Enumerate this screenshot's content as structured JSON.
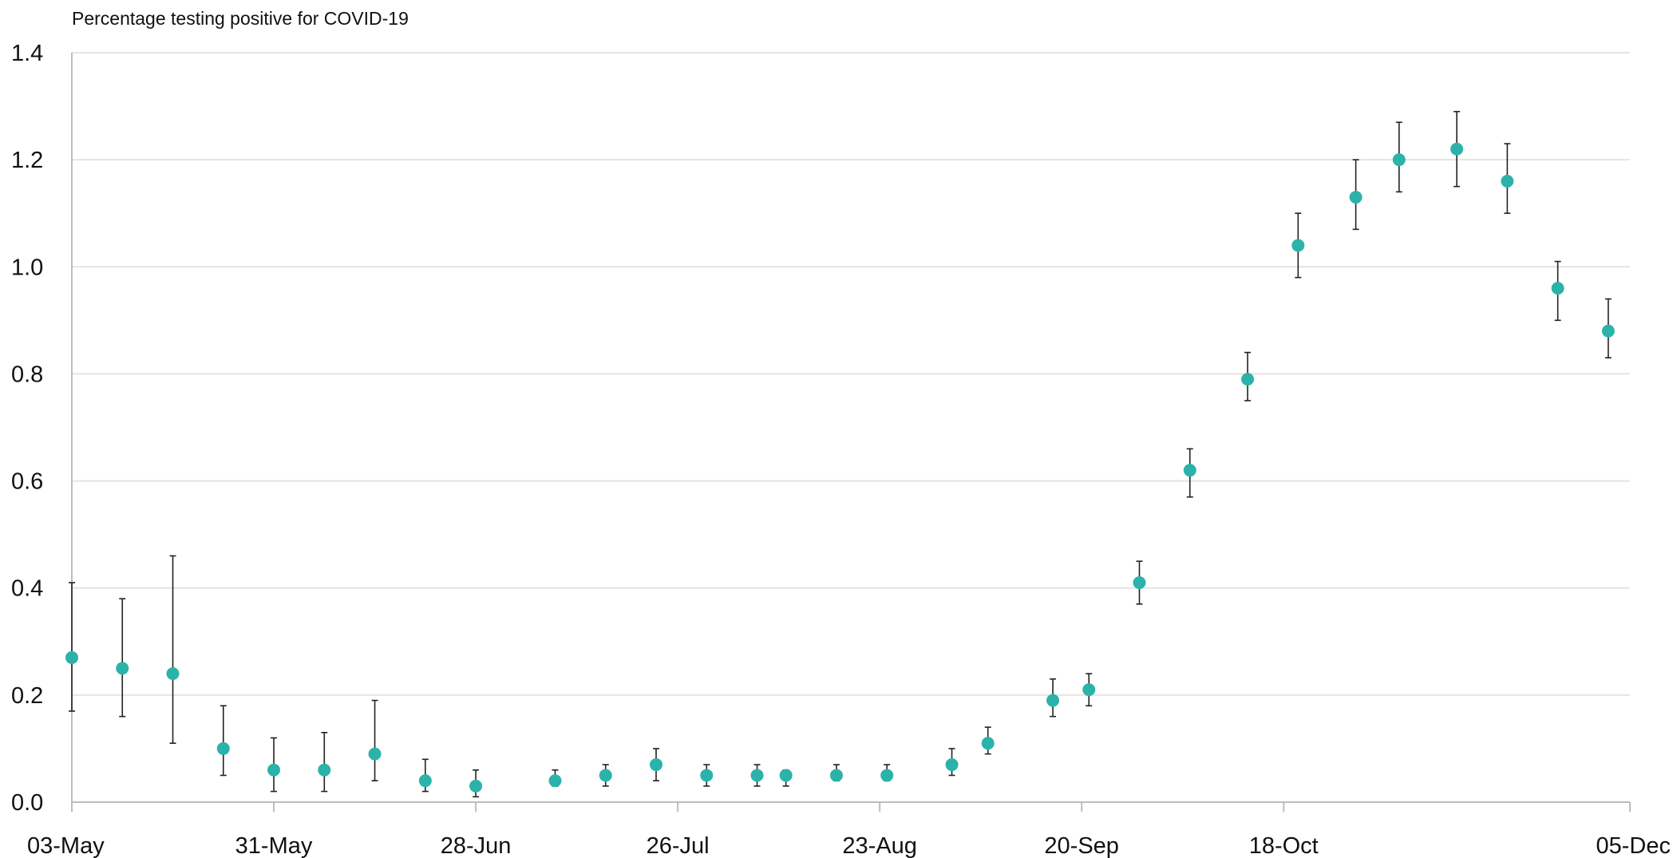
{
  "chart_data": {
    "type": "scatter",
    "title": "Percentage testing positive for COVID-19",
    "xlabel": "",
    "ylabel": "",
    "ylim": [
      0,
      1.4
    ],
    "xlim": [
      "2020-05-03",
      "2020-12-05"
    ],
    "y_ticks": [
      "0.0",
      "0.2",
      "0.4",
      "0.6",
      "0.8",
      "1.0",
      "1.2",
      "1.4"
    ],
    "x_ticks": [
      {
        "date": "2020-05-03",
        "label": "03-May"
      },
      {
        "date": "2020-05-31",
        "label": "31-May"
      },
      {
        "date": "2020-06-28",
        "label": "28-Jun"
      },
      {
        "date": "2020-07-26",
        "label": "26-Jul"
      },
      {
        "date": "2020-08-23",
        "label": "23-Aug"
      },
      {
        "date": "2020-09-20",
        "label": "20-Sep"
      },
      {
        "date": "2020-10-18",
        "label": "18-Oct"
      },
      {
        "date": "2020-12-05",
        "label": "05-Dec"
      }
    ],
    "grid": "horizontal",
    "legend": "none",
    "series": [
      {
        "color": "#2bb3aa",
        "points": [
          {
            "x": "2020-05-03",
            "y": 0.27,
            "lower": 0.17,
            "upper": 0.41
          },
          {
            "x": "2020-05-10",
            "y": 0.25,
            "lower": 0.16,
            "upper": 0.38
          },
          {
            "x": "2020-05-17",
            "y": 0.24,
            "lower": 0.11,
            "upper": 0.46
          },
          {
            "x": "2020-05-24",
            "y": 0.1,
            "lower": 0.05,
            "upper": 0.18
          },
          {
            "x": "2020-05-31",
            "y": 0.06,
            "lower": 0.02,
            "upper": 0.12
          },
          {
            "x": "2020-06-07",
            "y": 0.06,
            "lower": 0.02,
            "upper": 0.13
          },
          {
            "x": "2020-06-14",
            "y": 0.09,
            "lower": 0.04,
            "upper": 0.19
          },
          {
            "x": "2020-06-21",
            "y": 0.04,
            "lower": 0.02,
            "upper": 0.08
          },
          {
            "x": "2020-06-28",
            "y": 0.03,
            "lower": 0.01,
            "upper": 0.06
          },
          {
            "x": "2020-07-09",
            "y": 0.04,
            "lower": 0.03,
            "upper": 0.06
          },
          {
            "x": "2020-07-16",
            "y": 0.05,
            "lower": 0.03,
            "upper": 0.07
          },
          {
            "x": "2020-07-23",
            "y": 0.07,
            "lower": 0.04,
            "upper": 0.1
          },
          {
            "x": "2020-07-30",
            "y": 0.05,
            "lower": 0.03,
            "upper": 0.07
          },
          {
            "x": "2020-08-06",
            "y": 0.05,
            "lower": 0.03,
            "upper": 0.07
          },
          {
            "x": "2020-08-10",
            "y": 0.05,
            "lower": 0.03,
            "upper": 0.06
          },
          {
            "x": "2020-08-17",
            "y": 0.05,
            "lower": 0.04,
            "upper": 0.07
          },
          {
            "x": "2020-08-24",
            "y": 0.05,
            "lower": 0.04,
            "upper": 0.07
          },
          {
            "x": "2020-09-02",
            "y": 0.07,
            "lower": 0.05,
            "upper": 0.1
          },
          {
            "x": "2020-09-07",
            "y": 0.11,
            "lower": 0.09,
            "upper": 0.14
          },
          {
            "x": "2020-09-16",
            "y": 0.19,
            "lower": 0.16,
            "upper": 0.23
          },
          {
            "x": "2020-09-21",
            "y": 0.21,
            "lower": 0.18,
            "upper": 0.24
          },
          {
            "x": "2020-09-28",
            "y": 0.41,
            "lower": 0.37,
            "upper": 0.45
          },
          {
            "x": "2020-10-05",
            "y": 0.62,
            "lower": 0.57,
            "upper": 0.66
          },
          {
            "x": "2020-10-13",
            "y": 0.79,
            "lower": 0.75,
            "upper": 0.84
          },
          {
            "x": "2020-10-20",
            "y": 1.04,
            "lower": 0.98,
            "upper": 1.1
          },
          {
            "x": "2020-10-28",
            "y": 1.13,
            "lower": 1.07,
            "upper": 1.2
          },
          {
            "x": "2020-11-03",
            "y": 1.2,
            "lower": 1.14,
            "upper": 1.27
          },
          {
            "x": "2020-11-11",
            "y": 1.22,
            "lower": 1.15,
            "upper": 1.29
          },
          {
            "x": "2020-11-18",
            "y": 1.16,
            "lower": 1.1,
            "upper": 1.23
          },
          {
            "x": "2020-11-25",
            "y": 0.96,
            "lower": 0.9,
            "upper": 1.01
          },
          {
            "x": "2020-12-02",
            "y": 0.88,
            "lower": 0.83,
            "upper": 0.94
          }
        ]
      }
    ]
  }
}
